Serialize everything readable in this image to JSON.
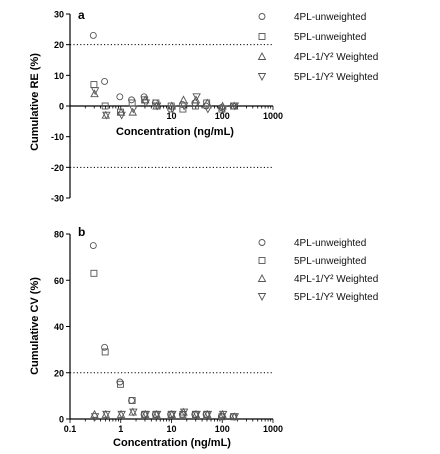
{
  "chart_data": [
    {
      "type": "scatter",
      "panel_label": "a",
      "xlabel": "Concentration (ng/mL)",
      "ylabel": "Cumulative RE (%)",
      "x_scale": "log",
      "xlim": [
        0.1,
        1000
      ],
      "ylim": [
        -30,
        30
      ],
      "x_ticks": [
        10,
        100,
        1000
      ],
      "x_tick_labels": [
        "10",
        "100",
        "1000"
      ],
      "y_ticks": [
        -30,
        -20,
        -10,
        0,
        10,
        20,
        30
      ],
      "y_tick_labels": [
        "-30",
        "-20",
        "-10",
        "0",
        "10",
        "20",
        "30"
      ],
      "reference_lines": [
        20,
        -20
      ],
      "legend_position": "right",
      "series": [
        {
          "name": "4PL-unweighted",
          "marker": "circle",
          "x": [
            0.3,
            0.5,
            1,
            1.7,
            3,
            5,
            10,
            17,
            30,
            50,
            100,
            170
          ],
          "y": [
            23,
            8,
            3,
            2,
            3,
            1,
            -1,
            0.5,
            1,
            0,
            -0.5,
            0
          ]
        },
        {
          "name": "5PL-unweighted",
          "marker": "square",
          "x": [
            0.3,
            0.5,
            1,
            1.7,
            3,
            5,
            10,
            17,
            30,
            50,
            100,
            170
          ],
          "y": [
            7,
            0,
            -2,
            1,
            2,
            1,
            0,
            -1,
            0,
            1,
            -1,
            0
          ]
        },
        {
          "name": "4PL-1/Y² Weighted",
          "marker": "triangle-up",
          "x": [
            0.3,
            0.5,
            1,
            1.7,
            3,
            5,
            10,
            17,
            30,
            50,
            100,
            170
          ],
          "y": [
            4,
            -3,
            -2,
            -2,
            2,
            0,
            0,
            2,
            2,
            1,
            0,
            0
          ]
        },
        {
          "name": "5PL-1/Y² Weighted",
          "marker": "triangle-down",
          "x": [
            0.3,
            0.5,
            1,
            1.7,
            3,
            5,
            10,
            17,
            30,
            50,
            100,
            170
          ],
          "y": [
            5,
            -3,
            -3,
            -1,
            1,
            0,
            -1,
            0,
            3,
            -1,
            -1,
            0
          ]
        }
      ]
    },
    {
      "type": "scatter",
      "panel_label": "b",
      "xlabel": "Concentration (ng/mL)",
      "ylabel": "Cumulative CV (%)",
      "x_scale": "log",
      "xlim": [
        0.1,
        1000
      ],
      "ylim": [
        0,
        80
      ],
      "x_ticks": [
        0.1,
        1,
        10,
        100,
        1000
      ],
      "x_tick_labels": [
        "0.1",
        "1",
        "10",
        "100",
        "1000"
      ],
      "y_ticks": [
        0,
        20,
        40,
        60,
        80
      ],
      "y_tick_labels": [
        "0",
        "20",
        "40",
        "60",
        "80"
      ],
      "reference_lines": [
        20
      ],
      "legend_position": "right",
      "series": [
        {
          "name": "4PL-unweighted",
          "marker": "circle",
          "x": [
            0.3,
            0.5,
            1,
            1.7,
            3,
            5,
            10,
            17,
            30,
            50,
            100,
            170
          ],
          "y": [
            75,
            31,
            16,
            8,
            2,
            2,
            2,
            2,
            2,
            2,
            1,
            1
          ]
        },
        {
          "name": "5PL-unweighted",
          "marker": "square",
          "x": [
            0.3,
            0.5,
            1,
            1.7,
            3,
            5,
            10,
            17,
            30,
            50,
            100,
            170
          ],
          "y": [
            63,
            29,
            15,
            8,
            2,
            2,
            2,
            2,
            2,
            2,
            1,
            1
          ]
        },
        {
          "name": "4PL-1/Y² Weighted",
          "marker": "triangle-up",
          "x": [
            0.3,
            0.5,
            1,
            1.7,
            3,
            5,
            10,
            17,
            30,
            50,
            100,
            170
          ],
          "y": [
            2,
            2,
            2,
            3,
            2,
            2,
            2,
            3,
            2,
            2,
            2,
            1
          ]
        },
        {
          "name": "5PL-1/Y² Weighted",
          "marker": "triangle-down",
          "x": [
            0.3,
            0.5,
            1,
            1.7,
            3,
            5,
            10,
            17,
            30,
            50,
            100,
            170
          ],
          "y": [
            1,
            2,
            2,
            3,
            2,
            2,
            2,
            3,
            2,
            2,
            2,
            1
          ]
        }
      ]
    }
  ]
}
